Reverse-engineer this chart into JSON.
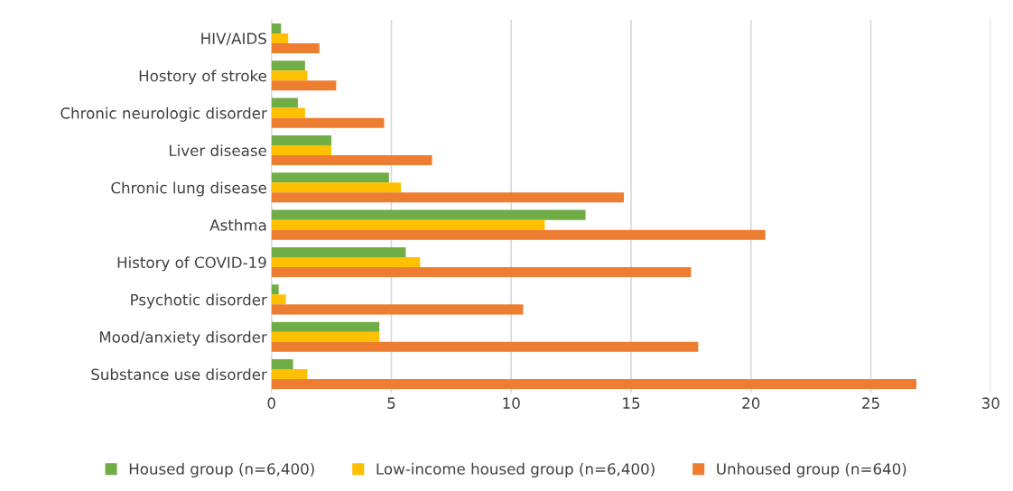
{
  "chart_data": {
    "type": "bar",
    "orientation": "horizontal",
    "categories": [
      "HIV/AIDS",
      "Hostory of stroke",
      "Chronic neurologic disorder",
      "Liver disease",
      "Chronic lung disease",
      "Asthma",
      "History of COVID-19",
      "Psychotic disorder",
      "Mood/anxiety disorder",
      "Substance use disorder"
    ],
    "series": [
      {
        "name": "Housed group (n=6,400)",
        "color": "#70ad47",
        "values": [
          0.4,
          1.4,
          1.1,
          2.5,
          4.9,
          13.1,
          5.6,
          0.3,
          4.5,
          0.9
        ]
      },
      {
        "name": "Low-income housed group (n=6,400)",
        "color": "#ffc000",
        "values": [
          0.7,
          1.5,
          1.4,
          2.5,
          5.4,
          11.4,
          6.2,
          0.6,
          4.5,
          1.5
        ]
      },
      {
        "name": "Unhoused group (n=640)",
        "color": "#ed7d31",
        "values": [
          2.0,
          2.7,
          4.7,
          6.7,
          14.7,
          20.6,
          17.5,
          10.5,
          17.8,
          26.9
        ]
      }
    ],
    "xlim": [
      0,
      30
    ],
    "xticks": [
      0,
      5,
      10,
      15,
      20,
      25,
      30
    ],
    "grid": "x",
    "legend": "bottom"
  }
}
